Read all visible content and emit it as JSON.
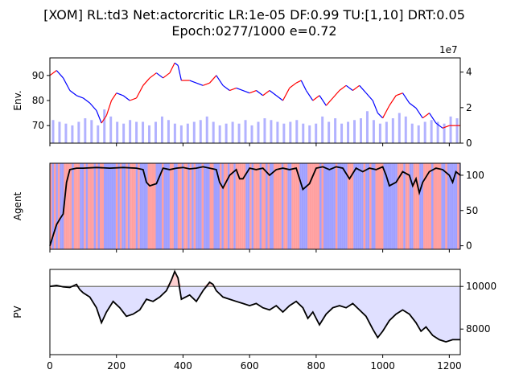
{
  "title_line1": "[XOM] RL:td3 Net:actorcritic LR:1e-05 DF:0.99 TU:[1,10] DRT:0.05",
  "title_line2": "Epoch:0277/1000 e=0.72",
  "colors": {
    "price_up": "#ff0000",
    "price_down": "#0000ff",
    "volume": "#8080ff",
    "agent_long": "#ff8080",
    "agent_short": "#8080ff",
    "agent_line": "#000000",
    "pv_line": "#000000",
    "pv_baseline": "#808080",
    "pv_fill_below": "#e0e0ff",
    "pv_fill_above": "#ffd0d0"
  },
  "chart_data": [
    {
      "type": "line",
      "panel": "env",
      "ylabel": "Env.",
      "xlim": [
        0,
        1233
      ],
      "ylim": [
        63,
        97
      ],
      "yticks": [
        70,
        80,
        90
      ],
      "y2lim": [
        0,
        48000000
      ],
      "y2ticks": [
        0,
        20000000,
        40000000
      ],
      "y2ticklabels": [
        "0",
        "2",
        "4"
      ],
      "y2_offset_label": "1e7",
      "series": [
        {
          "values": [
            [
              0,
              90
            ],
            [
              20,
              92
            ],
            [
              40,
              89
            ],
            [
              60,
              84
            ],
            [
              80,
              82
            ],
            [
              100,
              81
            ],
            [
              120,
              79
            ],
            [
              140,
              76
            ],
            [
              155,
              71
            ],
            [
              170,
              74
            ],
            [
              185,
              80
            ],
            [
              200,
              83
            ],
            [
              220,
              82
            ],
            [
              240,
              80
            ],
            [
              260,
              81
            ],
            [
              280,
              86
            ],
            [
              300,
              89
            ],
            [
              320,
              91
            ],
            [
              340,
              89
            ],
            [
              360,
              91
            ],
            [
              375,
              95
            ],
            [
              385,
              94
            ],
            [
              395,
              88
            ],
            [
              420,
              88
            ],
            [
              440,
              87
            ],
            [
              460,
              86
            ],
            [
              480,
              87
            ],
            [
              500,
              90
            ],
            [
              520,
              86
            ],
            [
              540,
              84
            ],
            [
              560,
              85
            ],
            [
              580,
              84
            ],
            [
              600,
              83
            ],
            [
              620,
              84
            ],
            [
              640,
              82
            ],
            [
              660,
              84
            ],
            [
              680,
              82
            ],
            [
              700,
              80
            ],
            [
              720,
              85
            ],
            [
              740,
              87
            ],
            [
              755,
              88
            ],
            [
              770,
              84
            ],
            [
              790,
              80
            ],
            [
              810,
              82
            ],
            [
              830,
              78
            ],
            [
              850,
              81
            ],
            [
              870,
              84
            ],
            [
              890,
              86
            ],
            [
              910,
              84
            ],
            [
              930,
              86
            ],
            [
              950,
              83
            ],
            [
              970,
              80
            ],
            [
              985,
              75
            ],
            [
              1000,
              73
            ],
            [
              1020,
              78
            ],
            [
              1040,
              82
            ],
            [
              1060,
              83
            ],
            [
              1080,
              79
            ],
            [
              1100,
              77
            ],
            [
              1120,
              73
            ],
            [
              1140,
              75
            ],
            [
              1160,
              71
            ],
            [
              1180,
              69
            ],
            [
              1200,
              70
            ],
            [
              1220,
              70
            ],
            [
              1233,
              70
            ]
          ]
        },
        {
          "type": "bar",
          "note": "volume",
          "values_1e7": [
            1.3,
            1.2,
            1.1,
            1.0,
            1.2,
            1.4,
            1.3,
            1.0,
            1.9,
            1.5,
            1.2,
            1.1,
            1.3,
            1.2,
            1.2,
            1.0,
            1.2,
            1.5,
            1.3,
            1.1,
            1.0,
            1.1,
            1.2,
            1.3,
            1.5,
            1.2,
            1.0,
            1.1,
            1.2,
            1.1,
            1.3,
            1.0,
            1.2,
            1.4,
            1.3,
            1.2,
            1.1,
            1.2,
            1.3,
            1.1,
            1.0,
            1.1,
            1.5,
            1.2,
            1.4,
            1.1,
            1.2,
            1.3,
            1.4,
            1.8,
            1.3,
            1.1,
            1.2,
            1.4,
            1.7,
            1.5,
            1.1,
            1.0,
            1.2,
            1.3,
            1.2,
            1.1,
            1.5,
            1.4
          ]
        }
      ]
    },
    {
      "type": "line",
      "panel": "agent",
      "ylabel": "Agent",
      "xlim": [
        0,
        1233
      ],
      "ylim": [
        -5,
        117
      ],
      "yticks": [
        0,
        50,
        100
      ],
      "series": [
        {
          "values": [
            [
              0,
              0
            ],
            [
              10,
              15
            ],
            [
              20,
              30
            ],
            [
              30,
              38
            ],
            [
              40,
              45
            ],
            [
              50,
              90
            ],
            [
              60,
              108
            ],
            [
              80,
              110
            ],
            [
              100,
              110
            ],
            [
              140,
              111
            ],
            [
              180,
              110
            ],
            [
              220,
              111
            ],
            [
              260,
              110
            ],
            [
              280,
              108
            ],
            [
              290,
              90
            ],
            [
              300,
              85
            ],
            [
              320,
              88
            ],
            [
              340,
              110
            ],
            [
              360,
              108
            ],
            [
              380,
              110
            ],
            [
              400,
              111
            ],
            [
              420,
              109
            ],
            [
              440,
              110
            ],
            [
              460,
              112
            ],
            [
              480,
              110
            ],
            [
              500,
              108
            ],
            [
              510,
              90
            ],
            [
              520,
              82
            ],
            [
              540,
              100
            ],
            [
              560,
              108
            ],
            [
              570,
              95
            ],
            [
              580,
              95
            ],
            [
              600,
              110
            ],
            [
              620,
              108
            ],
            [
              640,
              110
            ],
            [
              660,
              100
            ],
            [
              680,
              108
            ],
            [
              700,
              110
            ],
            [
              720,
              108
            ],
            [
              740,
              110
            ],
            [
              760,
              80
            ],
            [
              780,
              88
            ],
            [
              800,
              110
            ],
            [
              820,
              112
            ],
            [
              840,
              108
            ],
            [
              860,
              112
            ],
            [
              880,
              110
            ],
            [
              900,
              95
            ],
            [
              920,
              110
            ],
            [
              940,
              105
            ],
            [
              960,
              110
            ],
            [
              980,
              108
            ],
            [
              1000,
              112
            ],
            [
              1010,
              100
            ],
            [
              1020,
              85
            ],
            [
              1040,
              90
            ],
            [
              1060,
              105
            ],
            [
              1080,
              100
            ],
            [
              1090,
              85
            ],
            [
              1100,
              95
            ],
            [
              1110,
              75
            ],
            [
              1120,
              90
            ],
            [
              1140,
              105
            ],
            [
              1160,
              110
            ],
            [
              1180,
              108
            ],
            [
              1200,
              100
            ],
            [
              1210,
              90
            ],
            [
              1220,
              105
            ],
            [
              1233,
              100
            ]
          ]
        }
      ]
    },
    {
      "type": "line",
      "panel": "pv",
      "ylabel": "PV",
      "xlabel": "",
      "xlim": [
        0,
        1233
      ],
      "ylim": [
        6800,
        10800
      ],
      "yticks": [
        8000,
        10000
      ],
      "xticks": [
        0,
        200,
        400,
        600,
        800,
        1000,
        1200
      ],
      "baseline": 10000,
      "series": [
        {
          "values": [
            [
              0,
              10000
            ],
            [
              20,
              10050
            ],
            [
              40,
              9980
            ],
            [
              60,
              9950
            ],
            [
              80,
              10100
            ],
            [
              90,
              9850
            ],
            [
              100,
              9700
            ],
            [
              120,
              9500
            ],
            [
              140,
              9000
            ],
            [
              155,
              8300
            ],
            [
              170,
              8800
            ],
            [
              190,
              9300
            ],
            [
              210,
              9000
            ],
            [
              230,
              8600
            ],
            [
              250,
              8700
            ],
            [
              270,
              8900
            ],
            [
              290,
              9400
            ],
            [
              310,
              9300
            ],
            [
              330,
              9500
            ],
            [
              350,
              9800
            ],
            [
              365,
              10300
            ],
            [
              375,
              10700
            ],
            [
              385,
              10400
            ],
            [
              395,
              9400
            ],
            [
              420,
              9600
            ],
            [
              440,
              9300
            ],
            [
              460,
              9800
            ],
            [
              480,
              10200
            ],
            [
              490,
              10100
            ],
            [
              500,
              9800
            ],
            [
              520,
              9500
            ],
            [
              540,
              9400
            ],
            [
              560,
              9300
            ],
            [
              580,
              9200
            ],
            [
              600,
              9100
            ],
            [
              620,
              9200
            ],
            [
              640,
              9000
            ],
            [
              660,
              8900
            ],
            [
              680,
              9100
            ],
            [
              700,
              8800
            ],
            [
              720,
              9100
            ],
            [
              740,
              9300
            ],
            [
              760,
              9000
            ],
            [
              775,
              8500
            ],
            [
              790,
              8800
            ],
            [
              810,
              8200
            ],
            [
              830,
              8700
            ],
            [
              850,
              9000
            ],
            [
              870,
              9100
            ],
            [
              890,
              9000
            ],
            [
              910,
              9200
            ],
            [
              930,
              8900
            ],
            [
              950,
              8600
            ],
            [
              970,
              8000
            ],
            [
              985,
              7600
            ],
            [
              1000,
              7900
            ],
            [
              1020,
              8400
            ],
            [
              1040,
              8700
            ],
            [
              1060,
              8900
            ],
            [
              1080,
              8700
            ],
            [
              1100,
              8300
            ],
            [
              1115,
              7900
            ],
            [
              1130,
              8100
            ],
            [
              1150,
              7700
            ],
            [
              1170,
              7500
            ],
            [
              1190,
              7400
            ],
            [
              1210,
              7500
            ],
            [
              1233,
              7500
            ]
          ]
        }
      ]
    }
  ]
}
